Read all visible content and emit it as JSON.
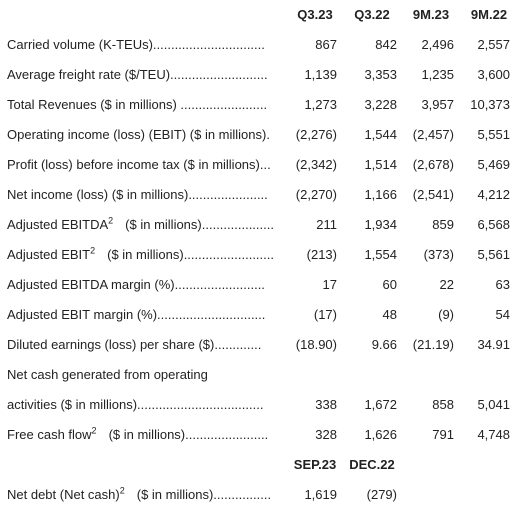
{
  "header": {
    "columns": [
      "Q3.23",
      "Q3.22",
      "9M.23",
      "9M.22"
    ]
  },
  "rows": [
    {
      "label": "Carried volume (K-TEUs)...............................",
      "values": [
        "867",
        "842",
        "2,496",
        "2,557"
      ]
    },
    {
      "label": "Average freight rate ($/TEU)...........................",
      "values": [
        "1,139",
        "3,353",
        "1,235",
        "3,600"
      ]
    },
    {
      "label": "Total Revenues ($ in millions) ........................",
      "values": [
        "1,273",
        "3,228",
        "3,957",
        "10,373"
      ]
    },
    {
      "label": "Operating income (loss) (EBIT) ($ in millions).",
      "values": [
        "(2,276)",
        "1,544",
        "(2,457)",
        "5,551"
      ]
    },
    {
      "label": "Profit (loss) before income tax ($ in millions)...",
      "values": [
        "(2,342)",
        "1,514",
        "(2,678)",
        "5,469"
      ]
    },
    {
      "label": "Net income (loss) ($ in millions)......................",
      "values": [
        "(2,270)",
        "1,166",
        "(2,541)",
        "4,212"
      ]
    },
    {
      "label": "Adjusted EBITDA",
      "sup": "2",
      "suffix": "($ in millions)....................",
      "values": [
        "211",
        "1,934",
        "859",
        "6,568"
      ]
    },
    {
      "label": "Adjusted EBIT",
      "sup": "2",
      "suffix": "($ in millions).........................",
      "values": [
        "(213)",
        "1,554",
        "(373)",
        "5,561"
      ]
    },
    {
      "label": "Adjusted EBITDA margin (%).........................",
      "values": [
        "17",
        "60",
        "22",
        "63"
      ]
    },
    {
      "label": "Adjusted EBIT margin (%)..............................",
      "values": [
        "(17)",
        "48",
        "(9)",
        "54"
      ]
    },
    {
      "label": "Diluted earnings (loss) per share ($).............",
      "values": [
        "(18.90)",
        "9.66",
        "(21.19)",
        "34.91"
      ]
    },
    {
      "label": "Net cash generated from operating",
      "values": []
    },
    {
      "label": "activities ($ in millions)...................................",
      "values": [
        "338",
        "1,672",
        "858",
        "5,041"
      ]
    },
    {
      "label": "Free cash flow",
      "sup": "2",
      "suffix": "($ in millions).......................",
      "values": [
        "328",
        "1,626",
        "791",
        "4,748"
      ]
    }
  ],
  "balance_header": {
    "columns": [
      "SEP.23",
      "DEC.22"
    ]
  },
  "balance_rows": [
    {
      "label": "Net debt (Net cash)",
      "sup": "2",
      "suffix": "($ in millions)................",
      "values": [
        "1,619",
        "(279)"
      ]
    }
  ]
}
